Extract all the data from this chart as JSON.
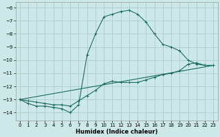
{
  "xlabel": "Humidex (Indice chaleur)",
  "bg_color": "#cce8e8",
  "grid_color": "#aacccc",
  "line_color": "#1a6b5a",
  "xlim": [
    -0.5,
    23.5
  ],
  "ylim": [
    -14.6,
    -5.6
  ],
  "yticks": [
    -14,
    -13,
    -12,
    -11,
    -10,
    -9,
    -8,
    -7,
    -6
  ],
  "xticks": [
    0,
    1,
    2,
    3,
    4,
    5,
    6,
    7,
    8,
    9,
    10,
    11,
    12,
    13,
    14,
    15,
    16,
    17,
    18,
    19,
    20,
    21,
    22,
    23
  ],
  "line1_x": [
    0,
    1,
    2,
    3,
    4,
    5,
    6,
    7,
    8,
    9,
    10,
    11,
    12,
    13,
    14,
    15,
    16,
    17,
    18,
    19,
    20,
    21,
    22,
    23
  ],
  "line1_y": [
    -13.0,
    -13.3,
    -13.5,
    -13.5,
    -13.6,
    -13.7,
    -14.0,
    -13.4,
    -9.6,
    -8.0,
    -6.7,
    -6.5,
    -6.3,
    -6.2,
    -6.5,
    -7.1,
    -8.0,
    -8.8,
    -9.0,
    -9.3,
    -10.0,
    -10.3,
    -10.4,
    -10.4
  ],
  "line2_x": [
    0,
    1,
    2,
    3,
    4,
    5,
    6,
    7,
    8,
    9,
    10,
    11,
    12,
    13,
    14,
    15,
    16,
    17,
    18,
    19,
    20,
    21,
    22,
    23
  ],
  "line2_y": [
    -13.0,
    -13.1,
    -13.2,
    -13.3,
    -13.4,
    -13.4,
    -13.5,
    -13.1,
    -12.7,
    -12.3,
    -11.8,
    -11.6,
    -11.7,
    -11.7,
    -11.7,
    -11.5,
    -11.3,
    -11.1,
    -11.0,
    -10.8,
    -10.3,
    -10.2,
    -10.4,
    -10.4
  ],
  "line3_x": [
    0,
    23
  ],
  "line3_y": [
    -13.0,
    -10.4
  ]
}
